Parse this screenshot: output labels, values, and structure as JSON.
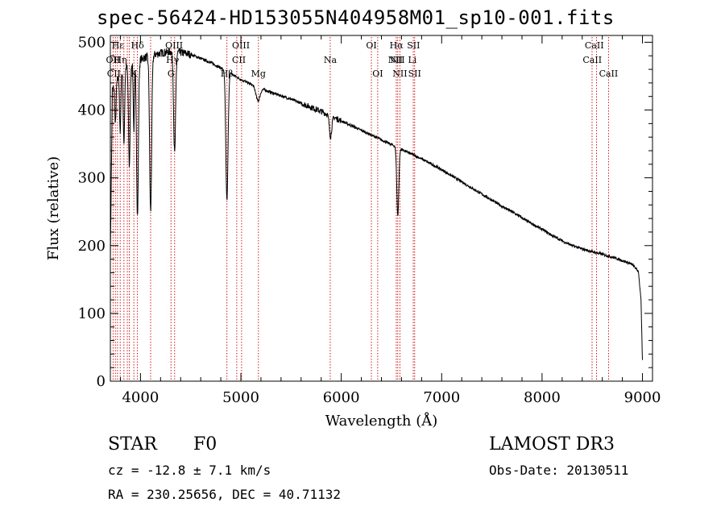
{
  "header": {
    "title": "spec-56424-HD153055N404958M01_sp10-001.fits"
  },
  "info": {
    "object_class": "STAR",
    "subclass": "F0",
    "survey": "LAMOST DR3",
    "cz": "cz = -12.8 ± 7.1 km/s",
    "obs_date": "Obs-Date: 20130511",
    "radec": "RA = 230.25656, DEC =  40.71132"
  },
  "chart_data": {
    "type": "line",
    "title": "spec-56424-HD153055N404958M01_sp10-001.fits",
    "xlabel": "Wavelength (Å)",
    "ylabel": "Flux (relative)",
    "xlim": [
      3700,
      9100
    ],
    "ylim": [
      0,
      510
    ],
    "x_ticks": [
      4000,
      5000,
      6000,
      7000,
      8000,
      9000
    ],
    "y_ticks": [
      0,
      100,
      200,
      300,
      400,
      500
    ],
    "series": [
      {
        "name": "flux",
        "color": "#000000",
        "continuum": [
          [
            3700,
            180
          ],
          [
            3720,
            430
          ],
          [
            3760,
            440
          ],
          [
            3800,
            455
          ],
          [
            3850,
            462
          ],
          [
            3900,
            468
          ],
          [
            4000,
            475
          ],
          [
            4100,
            480
          ],
          [
            4200,
            484
          ],
          [
            4300,
            486
          ],
          [
            4400,
            485
          ],
          [
            4500,
            482
          ],
          [
            4600,
            476
          ],
          [
            4700,
            470
          ],
          [
            4800,
            462
          ],
          [
            4900,
            454
          ],
          [
            5000,
            445
          ],
          [
            5100,
            438
          ],
          [
            5200,
            432
          ],
          [
            5300,
            426
          ],
          [
            5400,
            421
          ],
          [
            5500,
            416
          ],
          [
            5600,
            410
          ],
          [
            5700,
            404
          ],
          [
            5800,
            398
          ],
          [
            5900,
            391
          ],
          [
            6000,
            384
          ],
          [
            6100,
            377
          ],
          [
            6200,
            370
          ],
          [
            6300,
            363
          ],
          [
            6400,
            356
          ],
          [
            6500,
            349
          ],
          [
            6600,
            342
          ],
          [
            6700,
            335
          ],
          [
            6800,
            328
          ],
          [
            6900,
            320
          ],
          [
            7000,
            312
          ],
          [
            7100,
            303
          ],
          [
            7200,
            294
          ],
          [
            7300,
            285
          ],
          [
            7400,
            276
          ],
          [
            7500,
            267
          ],
          [
            7600,
            258
          ],
          [
            7700,
            250
          ],
          [
            7800,
            241
          ],
          [
            7900,
            232
          ],
          [
            8000,
            224
          ],
          [
            8100,
            215
          ],
          [
            8200,
            207
          ],
          [
            8300,
            200
          ],
          [
            8400,
            195
          ],
          [
            8500,
            191
          ],
          [
            8600,
            187
          ],
          [
            8700,
            183
          ],
          [
            8800,
            178
          ],
          [
            8900,
            172
          ],
          [
            8960,
            162
          ],
          [
            8985,
            120
          ],
          [
            9000,
            30
          ]
        ],
        "absorption_lines": [
          {
            "center": 3750,
            "depth": 60,
            "width": 6
          },
          {
            "center": 3798,
            "depth": 90,
            "width": 6
          },
          {
            "center": 3835,
            "depth": 110,
            "width": 7
          },
          {
            "center": 3889,
            "depth": 150,
            "width": 8
          },
          {
            "center": 3934,
            "depth": 100,
            "width": 6
          },
          {
            "center": 3970,
            "depth": 230,
            "width": 9
          },
          {
            "center": 4101,
            "depth": 230,
            "width": 10
          },
          {
            "center": 4340,
            "depth": 150,
            "width": 10
          },
          {
            "center": 4861,
            "depth": 190,
            "width": 11
          },
          {
            "center": 5170,
            "depth": 20,
            "width": 20
          },
          {
            "center": 5893,
            "depth": 30,
            "width": 12
          },
          {
            "center": 6563,
            "depth": 100,
            "width": 10
          }
        ],
        "noise_amplitude": 4
      }
    ],
    "spectral_lines": {
      "wavelengths": [
        3727,
        3750,
        3771,
        3798,
        3835,
        3869,
        3889,
        3934,
        3970,
        4101,
        4304,
        4340,
        4861,
        4959,
        5007,
        5175,
        5890,
        6300,
        6363,
        6548,
        6563,
        6584,
        6717,
        6731,
        8498,
        8542,
        8662
      ],
      "color": "#cc0000"
    },
    "line_labels": [
      {
        "text": "Hε",
        "wave": 3775,
        "row": 0
      },
      {
        "text": "Hδ",
        "wave": 3970,
        "row": 0
      },
      {
        "text": "OIII",
        "wave": 4335,
        "row": 0
      },
      {
        "text": "OIII",
        "wave": 5000,
        "row": 0
      },
      {
        "text": "OI",
        "wave": 6300,
        "row": 0
      },
      {
        "text": "Hα",
        "wave": 6550,
        "row": 0
      },
      {
        "text": "SII",
        "wave": 6720,
        "row": 0
      },
      {
        "text": "CaII",
        "wave": 8520,
        "row": 0
      },
      {
        "text": "OII",
        "wave": 3727,
        "row": 1
      },
      {
        "text": "Hη",
        "wave": 3800,
        "row": 1
      },
      {
        "text": "Hγ",
        "wave": 4320,
        "row": 1
      },
      {
        "text": "NII",
        "wave": 6560,
        "row": 1
      },
      {
        "text": "CII",
        "wave": 4980,
        "row": 1
      },
      {
        "text": "Na",
        "wave": 5890,
        "row": 1
      },
      {
        "text": "NII",
        "wave": 6540,
        "row": 1
      },
      {
        "text": "Li",
        "wave": 6708,
        "row": 1
      },
      {
        "text": "CaII",
        "wave": 8500,
        "row": 1
      },
      {
        "text": "CII",
        "wave": 3735,
        "row": 2
      },
      {
        "text": "K",
        "wave": 3934,
        "row": 2
      },
      {
        "text": "G",
        "wave": 4304,
        "row": 2
      },
      {
        "text": "Hβ",
        "wave": 4861,
        "row": 2
      },
      {
        "text": "Mg",
        "wave": 5175,
        "row": 2
      },
      {
        "text": "OI",
        "wave": 6363,
        "row": 2
      },
      {
        "text": "NII",
        "wave": 6584,
        "row": 2
      },
      {
        "text": "SII",
        "wave": 6731,
        "row": 2
      },
      {
        "text": "CaII",
        "wave": 8662,
        "row": 2
      }
    ]
  }
}
